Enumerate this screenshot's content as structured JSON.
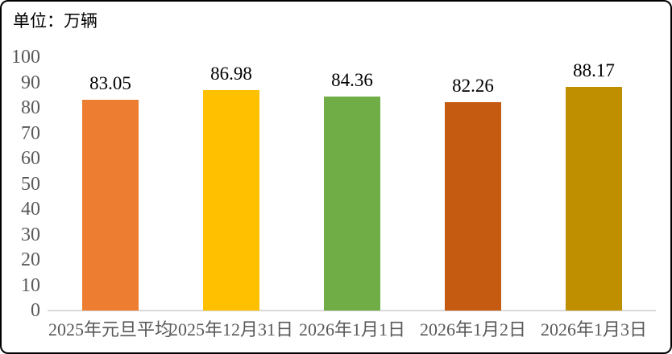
{
  "unit_label": "单位：万辆",
  "colors": {
    "axis_text": "#595959",
    "value_text": "#000000",
    "baseline": "#D9D9D9",
    "border": "#000000",
    "background": "#ffffff"
  },
  "chart_data": {
    "type": "bar",
    "title": "",
    "unit": "单位：万辆",
    "categories": [
      "2025年元旦平均",
      "2025年12月31日",
      "2026年1月1日",
      "2026年1月2日",
      "2026年1月3日"
    ],
    "values": [
      83.05,
      86.98,
      84.36,
      82.26,
      88.17
    ],
    "value_labels": [
      "83.05",
      "86.98",
      "84.36",
      "82.26",
      "88.17"
    ],
    "bar_colors": [
      "#ED7D31",
      "#FFC000",
      "#70AD47",
      "#C55A11",
      "#BF8F00"
    ],
    "xlabel": "",
    "ylabel": "",
    "ylim": [
      0,
      100
    ],
    "yticks": [
      0,
      10,
      20,
      30,
      40,
      50,
      60,
      70,
      80,
      90,
      100
    ],
    "grid": false,
    "legend": "none"
  }
}
